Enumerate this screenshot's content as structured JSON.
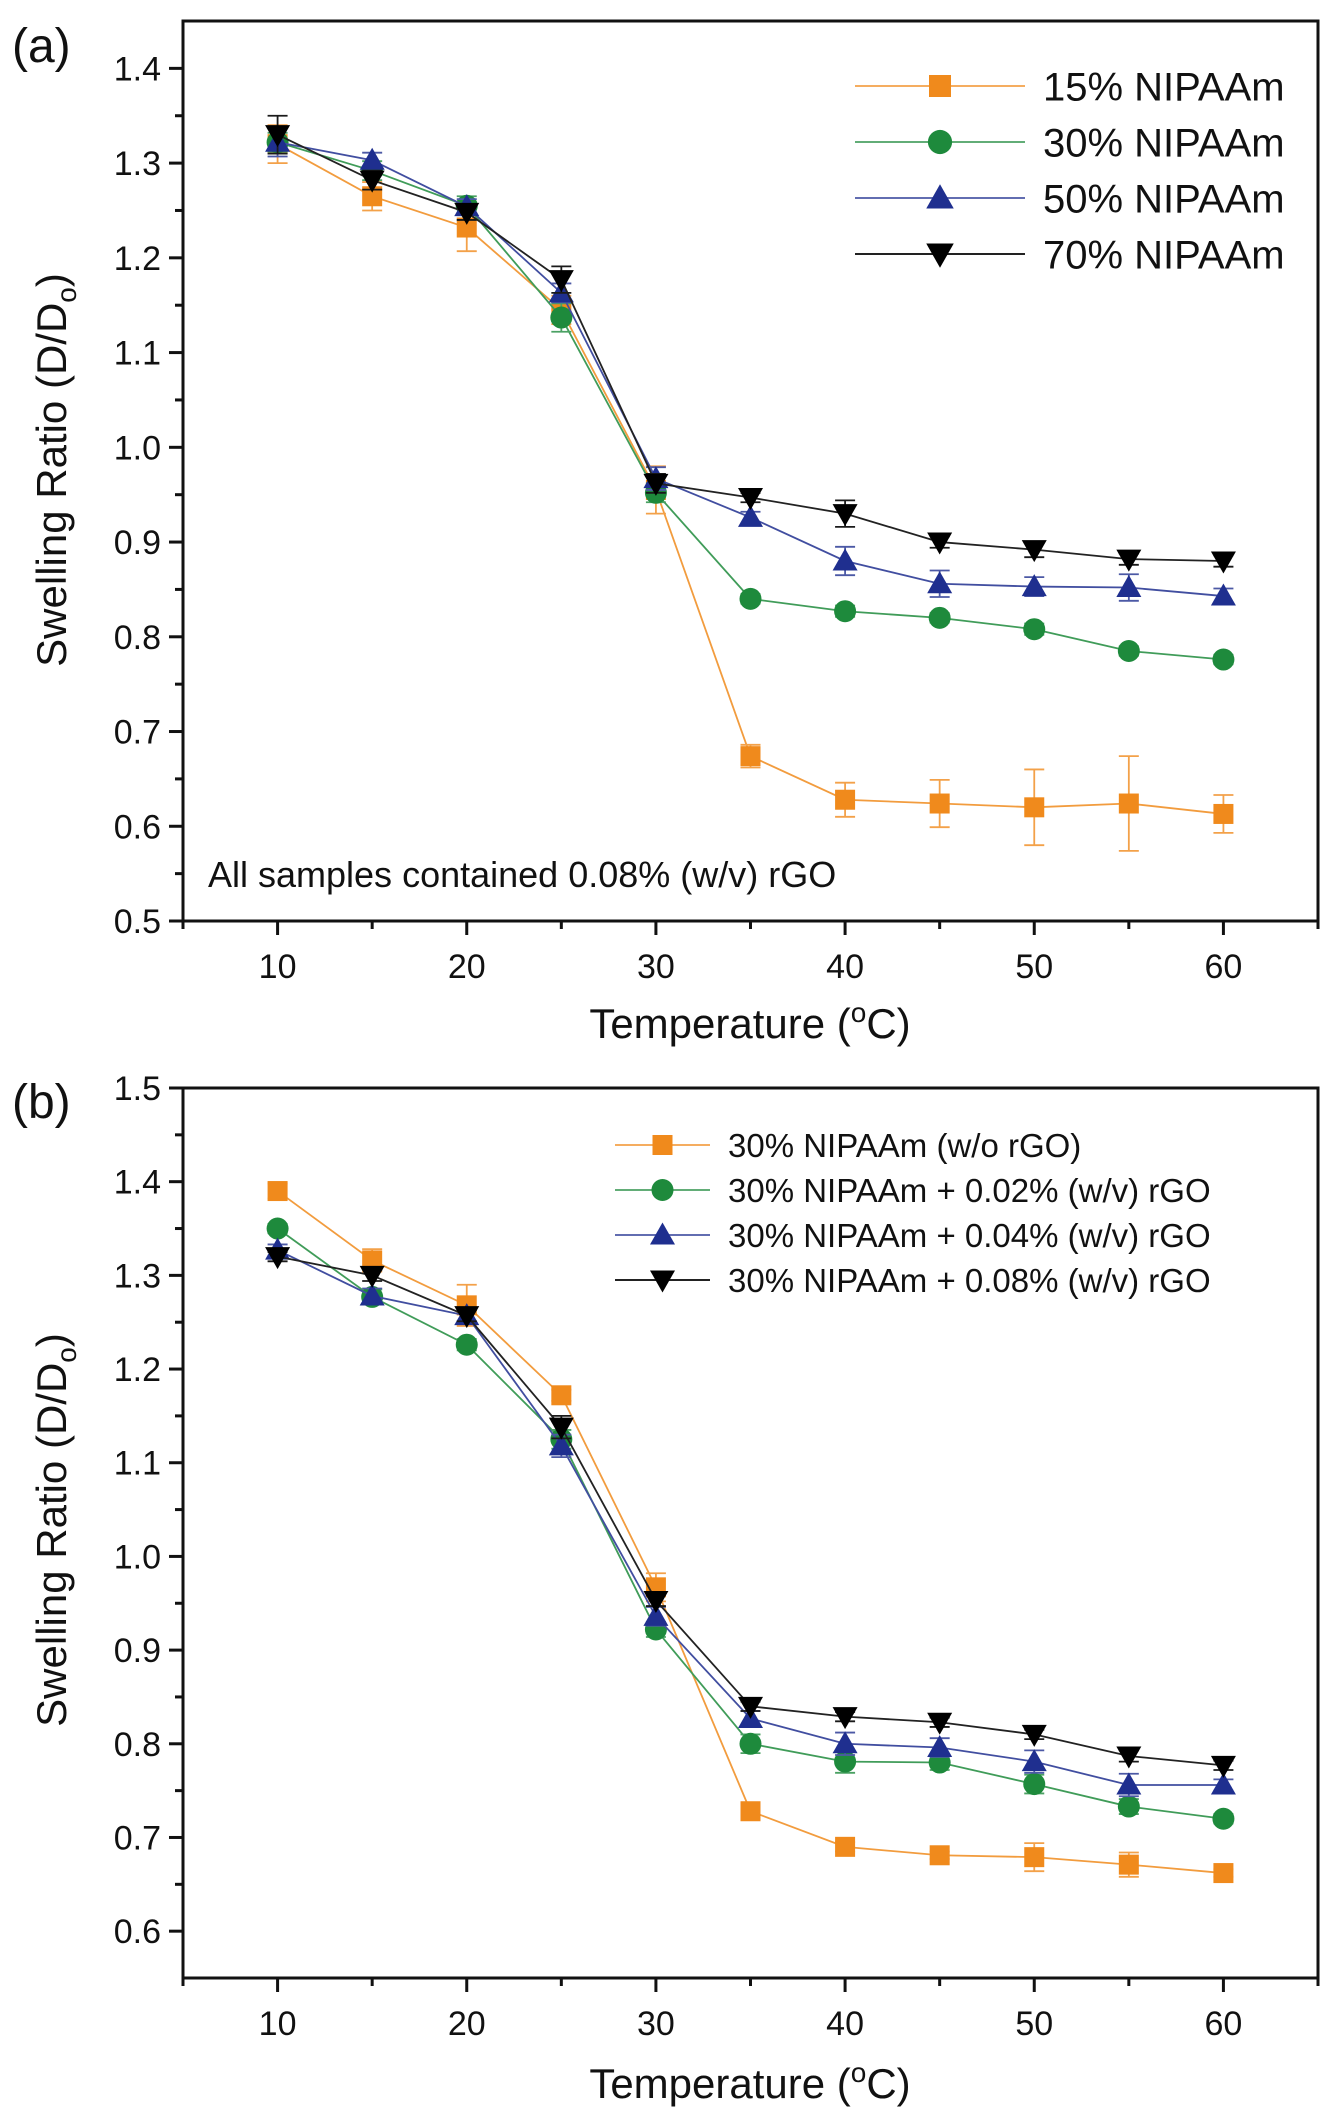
{
  "chart_data": [
    {
      "panel_label": "(a)",
      "type": "line",
      "title": "",
      "xlabel": "Temperature (",
      "xlabel_sup": "o",
      "xlabel_end": "C)",
      "ylabel": "Swelling Ratio (D/D",
      "ylabel_sub": "o",
      "ylabel_end": ")",
      "xlim": [
        5,
        65
      ],
      "ylim": [
        0.5,
        1.45
      ],
      "xticks": [
        10,
        20,
        30,
        40,
        50,
        60
      ],
      "xtick_labels": [
        "10",
        "20",
        "30",
        "40",
        "50",
        "60"
      ],
      "yticks": [
        0.5,
        0.6,
        0.7,
        0.8,
        0.9,
        1.0,
        1.1,
        1.2,
        1.3,
        1.4
      ],
      "ytick_labels": [
        "0.5",
        "0.6",
        "0.7",
        "0.8",
        "0.9",
        "1.0",
        "1.1",
        "1.2",
        "1.3",
        "1.4"
      ],
      "grid": false,
      "legend_position": "top-right",
      "annotation": "All samples contained 0.08% (w/v) rGO",
      "x": [
        10,
        15,
        20,
        25,
        30,
        35,
        40,
        45,
        50,
        55,
        60
      ],
      "series": [
        {
          "name": "15% NIPAAm",
          "marker": "square",
          "color": "#f08a1c",
          "values": [
            1.32,
            1.265,
            1.232,
            1.145,
            0.955,
            0.674,
            0.628,
            0.624,
            0.62,
            0.624,
            0.613
          ],
          "errors": [
            0.02,
            0.015,
            0.025,
            0.015,
            0.025,
            0.012,
            0.018,
            0.025,
            0.04,
            0.05,
            0.02
          ]
        },
        {
          "name": "30% NIPAAm",
          "marker": "circle",
          "color": "#1e8a3c",
          "values": [
            1.322,
            1.292,
            1.255,
            1.137,
            0.952,
            0.84,
            0.827,
            0.82,
            0.808,
            0.785,
            0.776
          ],
          "errors": [
            0.01,
            0.01,
            0.01,
            0.015,
            0.01,
            0.005,
            0.006,
            0.005,
            0.006,
            0.005,
            0.005
          ]
        },
        {
          "name": "50% NIPAAm",
          "marker": "triangle-up",
          "color": "#1f2f8f",
          "values": [
            1.322,
            1.303,
            1.254,
            1.163,
            0.967,
            0.926,
            0.88,
            0.856,
            0.853,
            0.852,
            0.843
          ],
          "errors": [
            0.015,
            0.008,
            0.008,
            0.01,
            0.012,
            0.006,
            0.015,
            0.014,
            0.01,
            0.014,
            0.008
          ]
        },
        {
          "name": "70% NIPAAm",
          "marker": "triangle-down",
          "color": "#000000",
          "values": [
            1.33,
            1.282,
            1.248,
            1.177,
            0.962,
            0.947,
            0.93,
            0.9,
            0.892,
            0.882,
            0.88
          ],
          "errors": [
            0.02,
            0.01,
            0.008,
            0.014,
            0.01,
            0.005,
            0.014,
            0.006,
            0.008,
            0.006,
            0.006
          ]
        }
      ]
    },
    {
      "panel_label": "(b)",
      "type": "line",
      "title": "",
      "xlabel": "Temperature (",
      "xlabel_sup": "o",
      "xlabel_end": "C)",
      "ylabel": "Swelling Ratio (D/D",
      "ylabel_sub": "o",
      "ylabel_end": ")",
      "xlim": [
        5,
        65
      ],
      "ylim": [
        0.55,
        1.5
      ],
      "xticks": [
        10,
        20,
        30,
        40,
        50,
        60
      ],
      "xtick_labels": [
        "10",
        "20",
        "30",
        "40",
        "50",
        "60"
      ],
      "yticks": [
        0.6,
        0.7,
        0.8,
        0.9,
        1.0,
        1.1,
        1.2,
        1.3,
        1.4,
        1.5
      ],
      "ytick_labels": [
        "0.6",
        "0.7",
        "0.8",
        "0.9",
        "1.0",
        "1.1",
        "1.2",
        "1.3",
        "1.4",
        "1.5"
      ],
      "grid": false,
      "legend_position": "top-right",
      "x": [
        10,
        15,
        20,
        25,
        30,
        35,
        40,
        45,
        50,
        55,
        60
      ],
      "series": [
        {
          "name": "30% NIPAAm (w/o rGO)",
          "marker": "square",
          "color": "#f08a1c",
          "values": [
            1.39,
            1.316,
            1.268,
            1.172,
            0.967,
            0.728,
            0.69,
            0.681,
            0.679,
            0.671,
            0.662
          ],
          "errors": [
            0.008,
            0.012,
            0.022,
            0.006,
            0.015,
            0.008,
            0.005,
            0.004,
            0.015,
            0.013,
            0.004
          ]
        },
        {
          "name": "30% NIPAAm + 0.02% (w/v) rGO",
          "marker": "circle",
          "color": "#1e8a3c",
          "values": [
            1.35,
            1.277,
            1.226,
            1.125,
            0.922,
            0.8,
            0.781,
            0.78,
            0.757,
            0.733,
            0.72
          ],
          "errors": [
            0.005,
            0.008,
            0.006,
            0.01,
            0.008,
            0.01,
            0.012,
            0.008,
            0.01,
            0.008,
            0.005
          ]
        },
        {
          "name": "30% NIPAAm + 0.04% (w/v) rGO",
          "marker": "triangle-up",
          "color": "#1f2f8f",
          "values": [
            1.327,
            1.278,
            1.257,
            1.118,
            0.936,
            0.827,
            0.8,
            0.796,
            0.781,
            0.756,
            0.756
          ],
          "errors": [
            0.006,
            0.008,
            0.008,
            0.012,
            0.01,
            0.008,
            0.012,
            0.01,
            0.012,
            0.012,
            0.006
          ]
        },
        {
          "name": "30% NIPAAm + 0.08% (w/v) rGO",
          "marker": "triangle-down",
          "color": "#000000",
          "values": [
            1.32,
            1.3,
            1.257,
            1.138,
            0.953,
            0.84,
            0.829,
            0.823,
            0.81,
            0.787,
            0.777
          ],
          "errors": [
            0.005,
            0.006,
            0.006,
            0.012,
            0.006,
            0.005,
            0.005,
            0.005,
            0.005,
            0.006,
            0.005
          ]
        }
      ]
    }
  ]
}
